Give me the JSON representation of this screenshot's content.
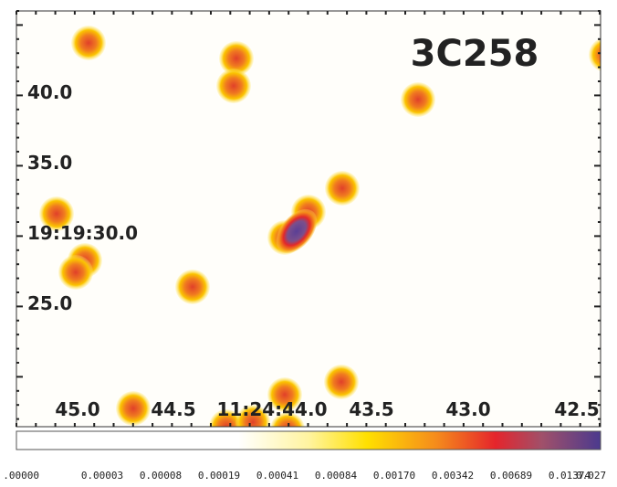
{
  "title": "3C258",
  "x_axis": {
    "tick_labels": [
      "45.0",
      "44.5",
      "11:24:44.0",
      "43.5",
      "43.0",
      "42.5"
    ]
  },
  "y_axis": {
    "tick_labels": [
      "40.0",
      "35.0",
      "19:19:30.0",
      "25.0"
    ]
  },
  "colorbar": {
    "labels": [
      ".00000",
      "0.00003",
      "0.00008",
      "0.00019",
      "0.00041",
      "0.00084",
      "0.00170",
      "0.00342",
      "0.00689",
      "0.01374",
      "0.027"
    ]
  }
}
